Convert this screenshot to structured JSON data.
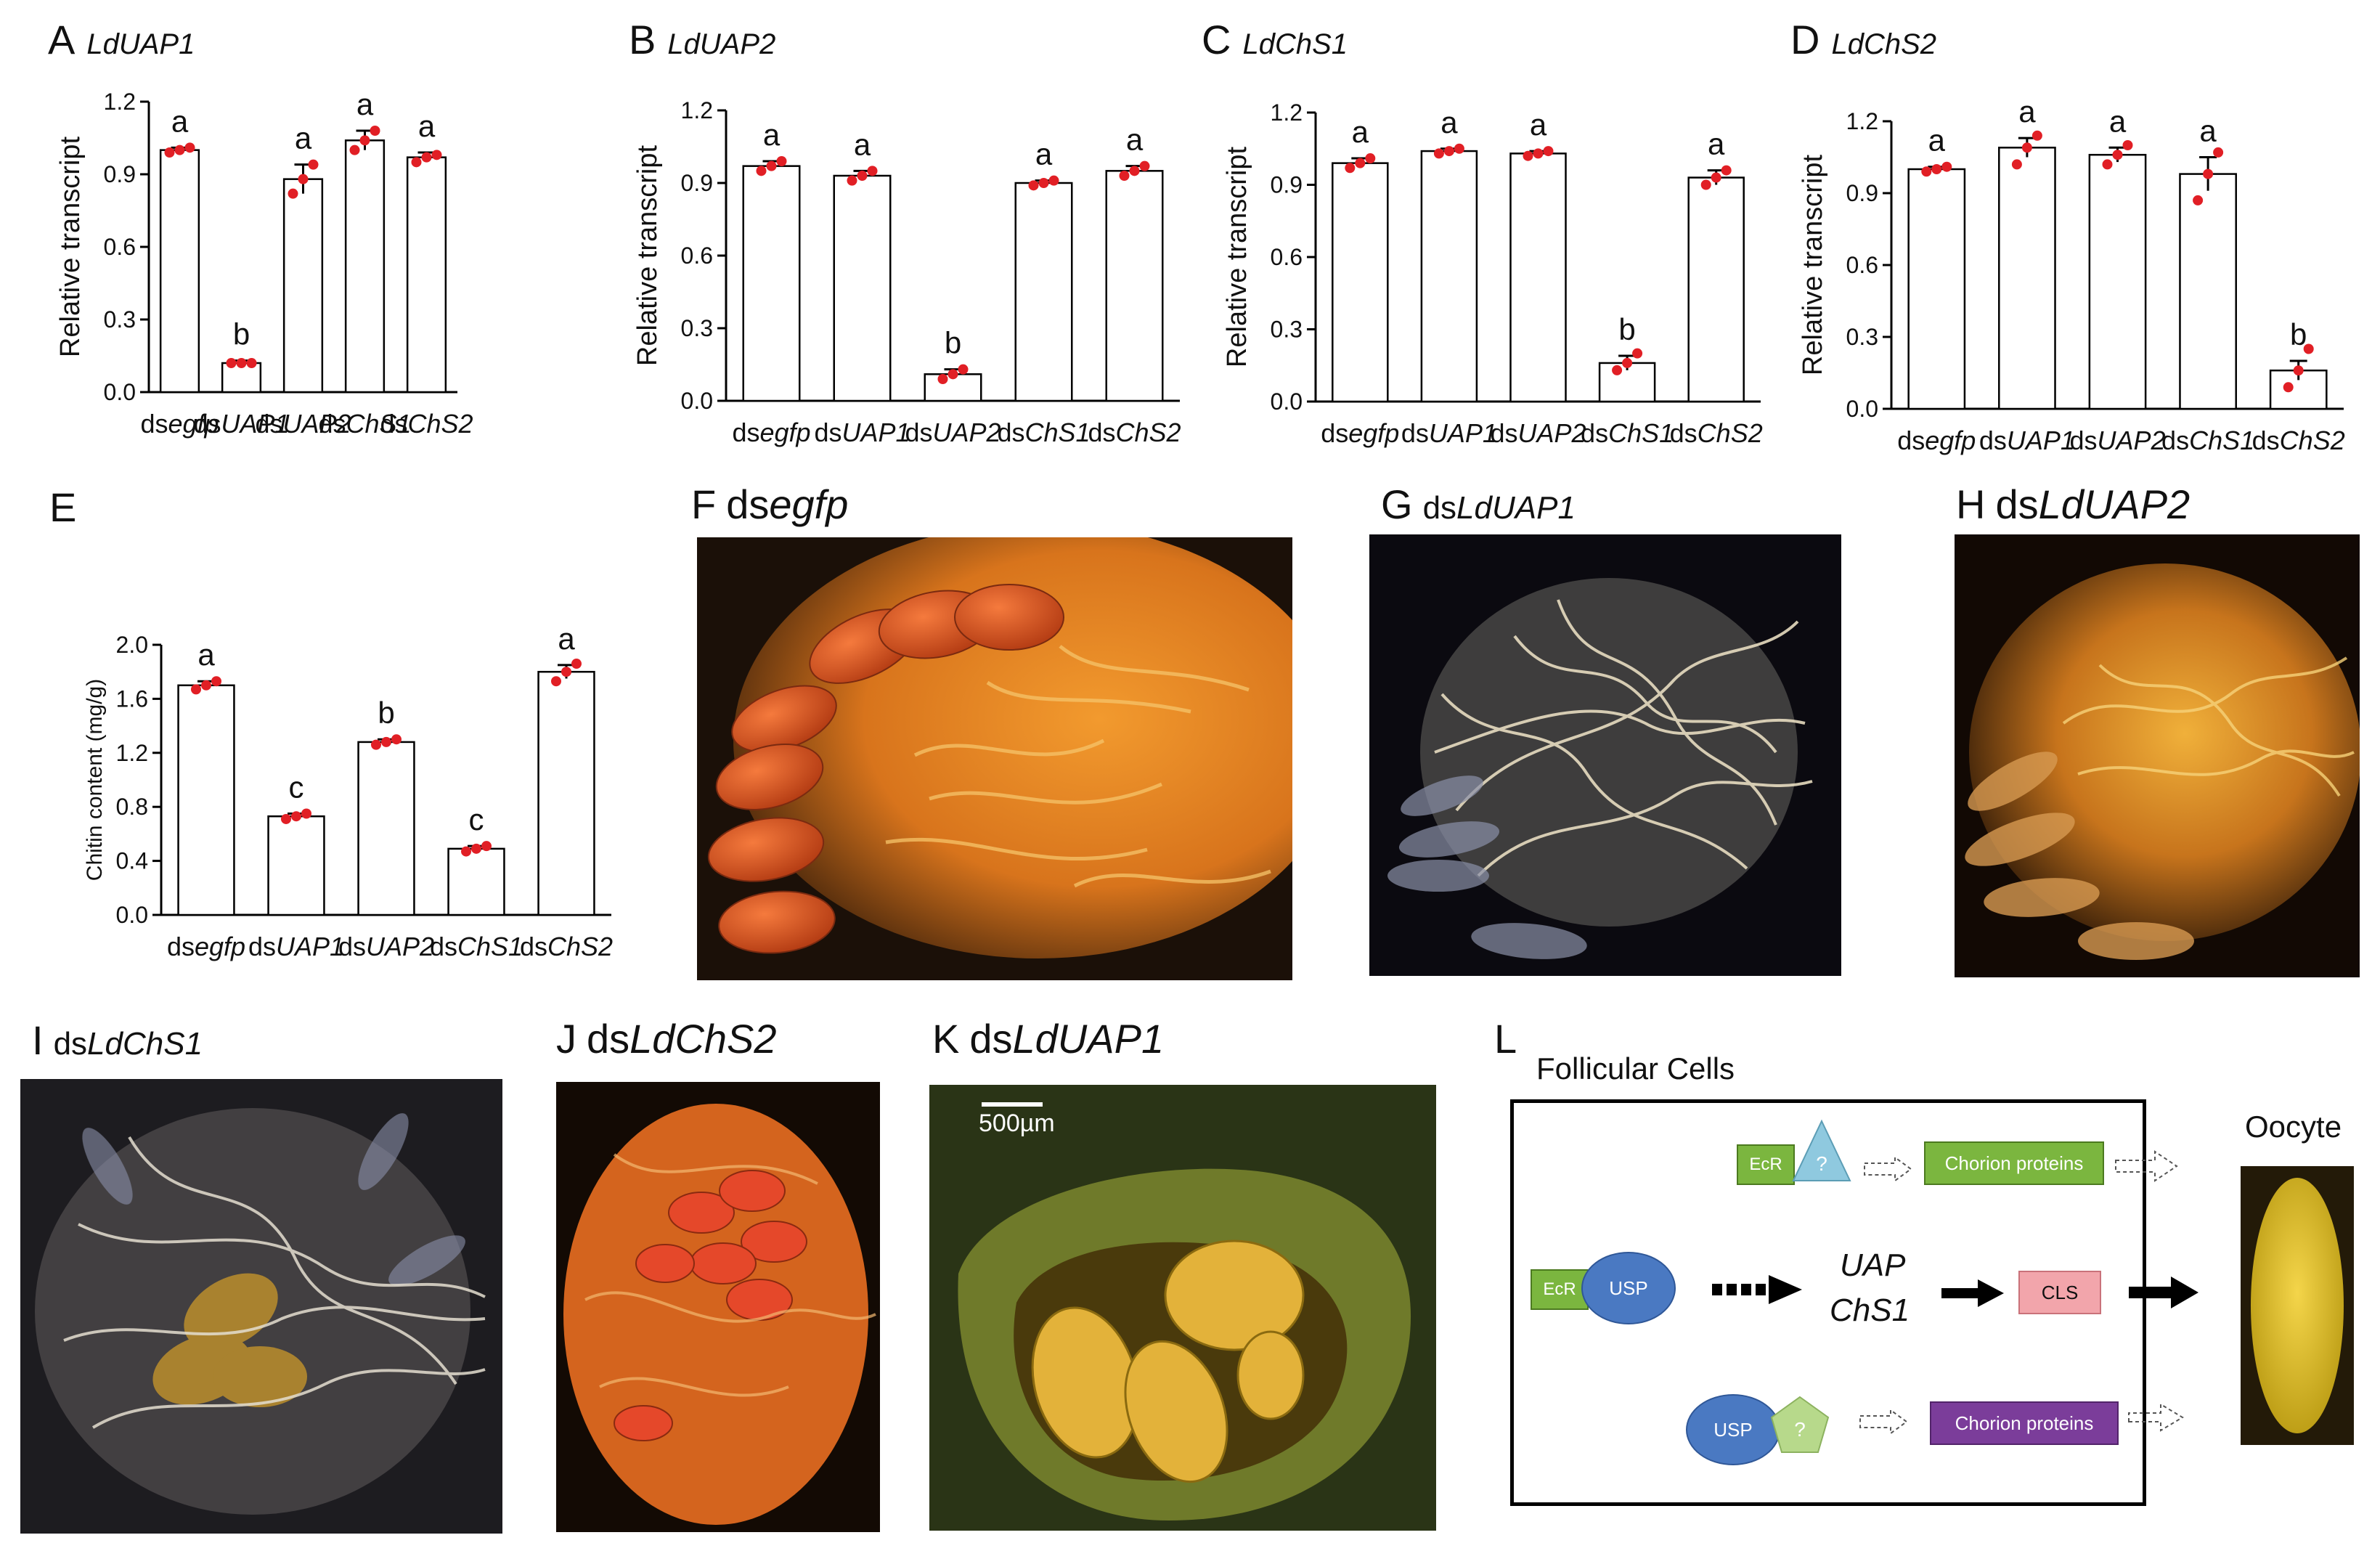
{
  "chart_data": [
    {
      "panel": "A",
      "type": "bar",
      "title": "LdUAP1",
      "ylabel": "Relative  transcript",
      "ylim": [
        0,
        1.2
      ],
      "yticks": [
        "1.2",
        "0.9",
        "0.6",
        "0.3",
        "0.0"
      ],
      "categories": [
        {
          "p": "ds",
          "g": "egfp"
        },
        {
          "p": "ds",
          "g": "UAP1"
        },
        {
          "p": "ds",
          "g": "UAP2"
        },
        {
          "p": "ds",
          "g": "ChS1"
        },
        {
          "p": "ds",
          "g": "ChS2"
        }
      ],
      "values": [
        1.0,
        0.12,
        0.88,
        1.04,
        0.97
      ],
      "errors": [
        0.01,
        0.01,
        0.06,
        0.04,
        0.02
      ],
      "letters": [
        "a",
        "b",
        "a",
        "a",
        "a"
      ],
      "points": [
        [
          0.99,
          1.0,
          1.01
        ],
        [
          0.12,
          0.12,
          0.12
        ],
        [
          0.82,
          0.88,
          0.94
        ],
        [
          1.0,
          1.04,
          1.08
        ],
        [
          0.95,
          0.97,
          0.98
        ]
      ]
    },
    {
      "panel": "B",
      "type": "bar",
      "title": "LdUAP2",
      "ylabel": "Relative  transcript",
      "ylim": [
        0,
        1.2
      ],
      "yticks": [
        "1.2",
        "0.9",
        "0.6",
        "0.3",
        "0.0"
      ],
      "categories": [
        {
          "p": "ds",
          "g": "egfp"
        },
        {
          "p": "ds",
          "g": "UAP1"
        },
        {
          "p": "ds",
          "g": "UAP2"
        },
        {
          "p": "ds",
          "g": "ChS1"
        },
        {
          "p": "ds",
          "g": "ChS2"
        }
      ],
      "values": [
        0.97,
        0.93,
        0.11,
        0.9,
        0.95
      ],
      "errors": [
        0.02,
        0.02,
        0.02,
        0.01,
        0.02
      ],
      "letters": [
        "a",
        "a",
        "b",
        "a",
        "a"
      ],
      "points": [
        [
          0.95,
          0.97,
          0.99
        ],
        [
          0.91,
          0.93,
          0.95
        ],
        [
          0.09,
          0.11,
          0.13
        ],
        [
          0.89,
          0.9,
          0.91
        ],
        [
          0.93,
          0.95,
          0.97
        ]
      ]
    },
    {
      "panel": "C",
      "type": "bar",
      "title": "LdChS1",
      "ylabel": "Relative  transcript",
      "ylim": [
        0,
        1.2
      ],
      "yticks": [
        "1.2",
        "0.9",
        "0.6",
        "0.3",
        "0.0"
      ],
      "categories": [
        {
          "p": "ds",
          "g": "egfp"
        },
        {
          "p": "ds",
          "g": "UAP1"
        },
        {
          "p": "ds",
          "g": "UAP2"
        },
        {
          "p": "ds",
          "g": "ChS1"
        },
        {
          "p": "ds",
          "g": "ChS2"
        }
      ],
      "values": [
        0.99,
        1.04,
        1.03,
        0.16,
        0.93
      ],
      "errors": [
        0.02,
        0.01,
        0.01,
        0.03,
        0.03
      ],
      "letters": [
        "a",
        "a",
        "a",
        "b",
        "a"
      ],
      "points": [
        [
          0.97,
          0.99,
          1.01
        ],
        [
          1.03,
          1.04,
          1.05
        ],
        [
          1.02,
          1.03,
          1.04
        ],
        [
          0.13,
          0.16,
          0.2
        ],
        [
          0.9,
          0.93,
          0.96
        ]
      ]
    },
    {
      "panel": "D",
      "type": "bar",
      "title": "LdChS2",
      "ylabel": "Relative  transcript",
      "ylim": [
        0,
        1.2
      ],
      "yticks": [
        "1.2",
        "0.9",
        "0.6",
        "0.3",
        "0.0"
      ],
      "categories": [
        {
          "p": "ds",
          "g": "egfp"
        },
        {
          "p": "ds",
          "g": "UAP1"
        },
        {
          "p": "ds",
          "g": "UAP2"
        },
        {
          "p": "ds",
          "g": "ChS1"
        },
        {
          "p": "ds",
          "g": "ChS2"
        }
      ],
      "values": [
        1.0,
        1.09,
        1.06,
        0.98,
        0.16
      ],
      "errors": [
        0.01,
        0.04,
        0.03,
        0.07,
        0.04
      ],
      "letters": [
        "a",
        "a",
        "a",
        "a",
        "b"
      ],
      "points": [
        [
          0.99,
          1.0,
          1.01
        ],
        [
          1.02,
          1.09,
          1.14
        ],
        [
          1.02,
          1.06,
          1.1
        ],
        [
          0.87,
          0.98,
          1.07
        ],
        [
          0.09,
          0.16,
          0.25
        ]
      ]
    },
    {
      "panel": "E",
      "type": "bar",
      "title": "",
      "ylabel": "Chitin content (mg/g)",
      "ylim": [
        0,
        2.0
      ],
      "yticks": [
        "2.0",
        "1.6",
        "1.2",
        "0.8",
        "0.4",
        "0.0"
      ],
      "categories": [
        {
          "p": "ds",
          "g": "egfp"
        },
        {
          "p": "ds",
          "g": "UAP1"
        },
        {
          "p": "ds",
          "g": "UAP2"
        },
        {
          "p": "ds",
          "g": "ChS1"
        },
        {
          "p": "ds",
          "g": "ChS2"
        }
      ],
      "values": [
        1.7,
        0.73,
        1.28,
        0.49,
        1.8
      ],
      "errors": [
        0.03,
        0.02,
        0.02,
        0.02,
        0.05
      ],
      "letters": [
        "a",
        "c",
        "b",
        "c",
        "a"
      ],
      "points": [
        [
          1.67,
          1.7,
          1.73
        ],
        [
          0.71,
          0.73,
          0.75
        ],
        [
          1.26,
          1.28,
          1.3
        ],
        [
          0.47,
          0.49,
          0.51
        ],
        [
          1.73,
          1.8,
          1.86
        ]
      ]
    }
  ],
  "photos": {
    "F": {
      "letter": "F",
      "prefix": "ds",
      "gene": "egfp"
    },
    "G": {
      "letter": "G",
      "prefix": "ds",
      "gene": "LdUAP1"
    },
    "H": {
      "letter": "H",
      "prefix": "ds",
      "gene": "LdUAP2"
    },
    "I": {
      "letter": "I",
      "prefix": "ds",
      "gene": "LdChS1"
    },
    "J": {
      "letter": "J",
      "prefix": "ds",
      "gene": "LdChS2"
    },
    "K": {
      "letter": "K",
      "prefix": "ds",
      "gene": "LdUAP1",
      "scalebar": "500µm"
    }
  },
  "model": {
    "letter": "L",
    "title": "Follicular Cells",
    "oocyte": "Oocyte",
    "ecr": "EcR",
    "usp": "USP",
    "unknown": "?",
    "chorion1": "Chorion proteins",
    "chorion2": "Chorion proteins",
    "uap": "UAP",
    "chs1": "ChS1",
    "cls": "CLS",
    "colors": {
      "green": "#7bb63f",
      "blue": "#4a79c2",
      "lightblue": "#8fc9df",
      "lightgreen": "#b7d98b",
      "purple": "#7b3d9a",
      "pink": "#f2a5ab",
      "red_dot": "#e11f25"
    }
  }
}
